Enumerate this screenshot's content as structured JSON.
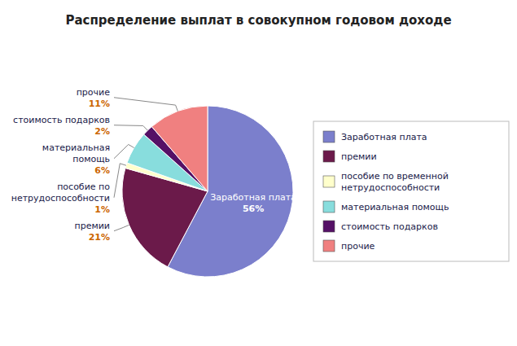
{
  "chart_data": {
    "type": "pie",
    "title": "Распределение выплат в совокупном годовом доходе",
    "categories": [
      "Заработная плата",
      "премии",
      "пособие по временной\nнетрудоспособности",
      "материальная помощь",
      "стоимость подарков",
      "прочие"
    ],
    "annotations": [
      "Заработная плата",
      "премии",
      "пособие по\nнетрудоспособности",
      "материальная\nпомощь",
      "стоимость подарков",
      "прочие"
    ],
    "values": [
      56,
      21,
      1,
      6,
      2,
      11
    ],
    "value_labels": [
      "56%",
      "21%",
      "1%",
      "6%",
      "2%",
      "11%"
    ],
    "colors": [
      "#7B7FCC",
      "#6B1A4A",
      "#FFFFCC",
      "#88DDDD",
      "#551166",
      "#F08080"
    ],
    "data_labels": true,
    "legend": "right"
  }
}
